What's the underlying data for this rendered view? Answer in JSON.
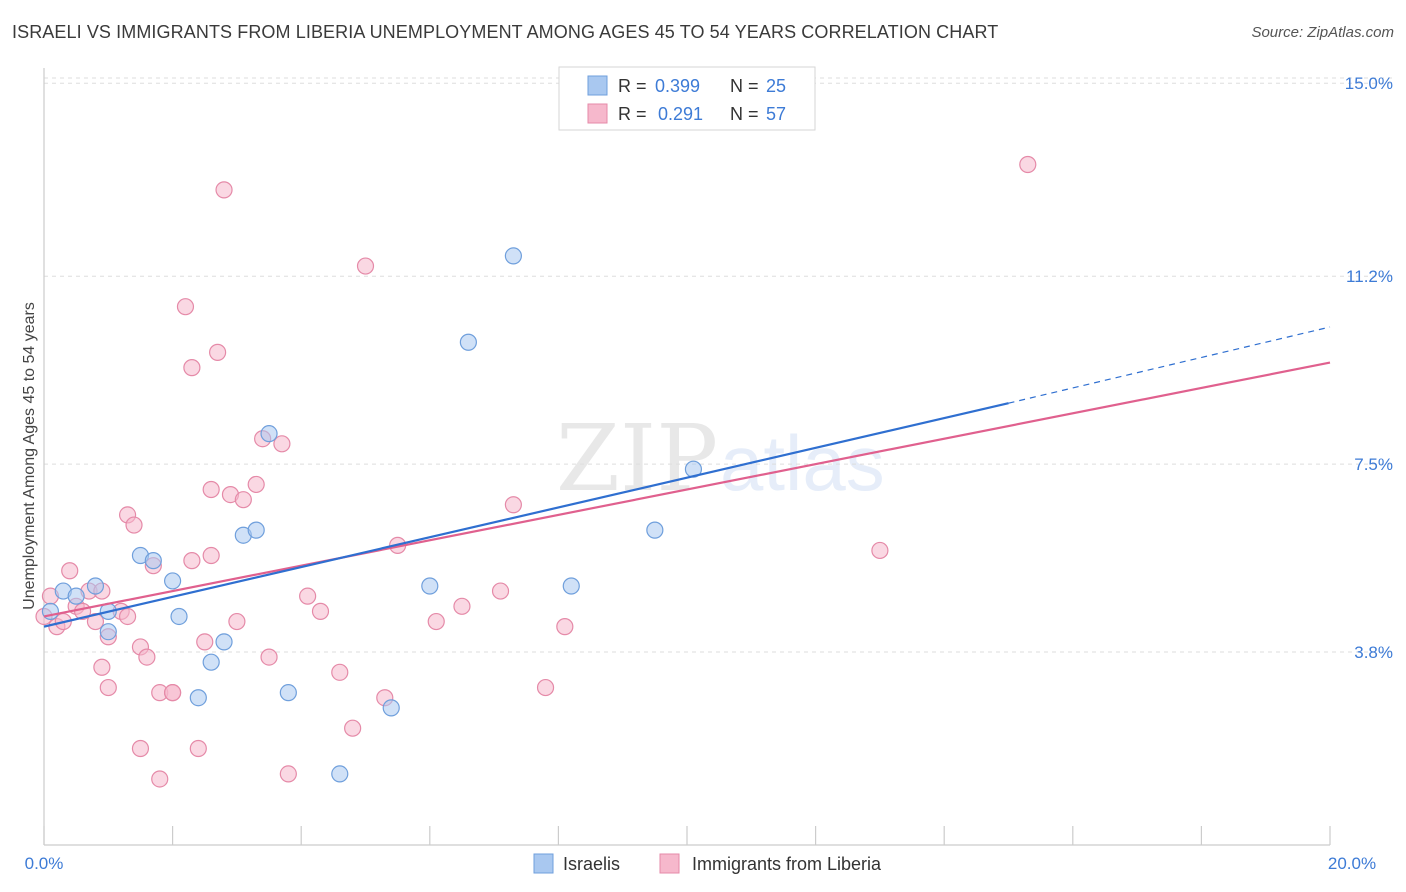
{
  "title": "ISRAELI VS IMMIGRANTS FROM LIBERIA UNEMPLOYMENT AMONG AGES 45 TO 54 YEARS CORRELATION CHART",
  "source": "Source: ZipAtlas.com",
  "watermark": {
    "zip": "ZIP",
    "atlas": "atlas"
  },
  "colors": {
    "blue_fill": "#a9c8f0",
    "blue_stroke": "#6f9fdc",
    "blue_line": "#2f6fd0",
    "pink_fill": "#f6b8cc",
    "pink_stroke": "#e58aa8",
    "pink_line": "#e0608e",
    "axis_value": "#3d7bd6",
    "grid": "#dddddd"
  },
  "legend_top": {
    "rows": [
      {
        "r_label": "R =",
        "r_value": "0.399",
        "n_label": "N =",
        "n_value": "25"
      },
      {
        "r_label": "R =",
        "r_value": "0.291",
        "n_label": "N =",
        "n_value": "57"
      }
    ]
  },
  "legend_bottom": [
    "Israelis",
    "Immigrants from Liberia"
  ],
  "chart_data": {
    "type": "scatter",
    "title": "ISRAELI VS IMMIGRANTS FROM LIBERIA UNEMPLOYMENT AMONG AGES 45 TO 54 YEARS CORRELATION CHART",
    "xlabel": "",
    "ylabel": "Unemployment Among Ages 45 to 54 years",
    "xlim": [
      0,
      20
    ],
    "ylim": [
      0,
      15.3
    ],
    "x_tick_labels": [
      "0.0%",
      "20.0%"
    ],
    "y_ticks": [
      3.8,
      7.5,
      11.2,
      15.0
    ],
    "y_tick_labels": [
      "3.8%",
      "7.5%",
      "11.2%",
      "15.0%"
    ],
    "grid": "horizontal dashed",
    "legend_position": "top-center and bottom-center",
    "series": [
      {
        "name": "Israelis",
        "color": "blue",
        "r": "0.399",
        "n": "25",
        "trend": {
          "x": [
            0,
            15
          ],
          "y": [
            4.3,
            8.7
          ],
          "dashed_extension": {
            "x": [
              15,
              20
            ],
            "y": [
              8.7,
              10.2
            ]
          }
        },
        "points": [
          [
            0.1,
            4.6
          ],
          [
            0.3,
            5.0
          ],
          [
            0.5,
            4.9
          ],
          [
            0.8,
            5.1
          ],
          [
            1.0,
            4.6
          ],
          [
            1.0,
            4.2
          ],
          [
            1.5,
            5.7
          ],
          [
            1.7,
            5.6
          ],
          [
            2.0,
            5.2
          ],
          [
            2.1,
            4.5
          ],
          [
            2.4,
            2.9
          ],
          [
            2.6,
            3.6
          ],
          [
            2.8,
            4.0
          ],
          [
            3.1,
            6.1
          ],
          [
            3.3,
            6.2
          ],
          [
            3.5,
            8.1
          ],
          [
            3.8,
            3.0
          ],
          [
            4.6,
            1.4
          ],
          [
            5.4,
            2.7
          ],
          [
            6.0,
            5.1
          ],
          [
            6.6,
            9.9
          ],
          [
            7.3,
            11.6
          ],
          [
            8.2,
            5.1
          ],
          [
            9.5,
            6.2
          ],
          [
            10.1,
            7.4
          ]
        ]
      },
      {
        "name": "Immigrants from Liberia",
        "color": "pink",
        "r": "0.291",
        "n": "57",
        "trend": {
          "x": [
            0,
            20
          ],
          "y": [
            4.5,
            9.5
          ]
        },
        "points": [
          [
            0.1,
            4.9
          ],
          [
            0.2,
            4.3
          ],
          [
            0.3,
            4.4
          ],
          [
            0.4,
            5.4
          ],
          [
            0.5,
            4.7
          ],
          [
            0.6,
            4.6
          ],
          [
            0.7,
            5.0
          ],
          [
            0.8,
            4.4
          ],
          [
            0.9,
            3.5
          ],
          [
            0.9,
            5.0
          ],
          [
            1.0,
            3.1
          ],
          [
            1.0,
            4.1
          ],
          [
            1.2,
            4.6
          ],
          [
            1.3,
            4.5
          ],
          [
            1.3,
            6.5
          ],
          [
            1.4,
            6.3
          ],
          [
            1.5,
            1.9
          ],
          [
            1.5,
            3.9
          ],
          [
            1.6,
            3.7
          ],
          [
            1.7,
            5.5
          ],
          [
            1.8,
            3.0
          ],
          [
            1.8,
            1.3
          ],
          [
            2.0,
            3.0
          ],
          [
            2.0,
            3.0
          ],
          [
            2.2,
            10.6
          ],
          [
            2.3,
            5.6
          ],
          [
            2.3,
            9.4
          ],
          [
            2.4,
            1.9
          ],
          [
            2.5,
            4.0
          ],
          [
            2.6,
            5.7
          ],
          [
            2.6,
            7.0
          ],
          [
            2.7,
            9.7
          ],
          [
            2.8,
            12.9
          ],
          [
            2.9,
            6.9
          ],
          [
            3.0,
            4.4
          ],
          [
            3.1,
            6.8
          ],
          [
            3.3,
            7.1
          ],
          [
            3.4,
            8.0
          ],
          [
            3.5,
            3.7
          ],
          [
            3.7,
            7.9
          ],
          [
            3.8,
            1.4
          ],
          [
            4.1,
            4.9
          ],
          [
            4.3,
            4.6
          ],
          [
            4.6,
            3.4
          ],
          [
            4.8,
            2.3
          ],
          [
            5.0,
            11.4
          ],
          [
            5.3,
            2.9
          ],
          [
            5.5,
            5.9
          ],
          [
            6.1,
            4.4
          ],
          [
            6.5,
            4.7
          ],
          [
            7.1,
            5.0
          ],
          [
            7.3,
            6.7
          ],
          [
            7.8,
            3.1
          ],
          [
            8.1,
            4.3
          ],
          [
            13.0,
            5.8
          ],
          [
            15.3,
            13.4
          ],
          [
            0.0,
            4.5
          ]
        ]
      }
    ]
  }
}
